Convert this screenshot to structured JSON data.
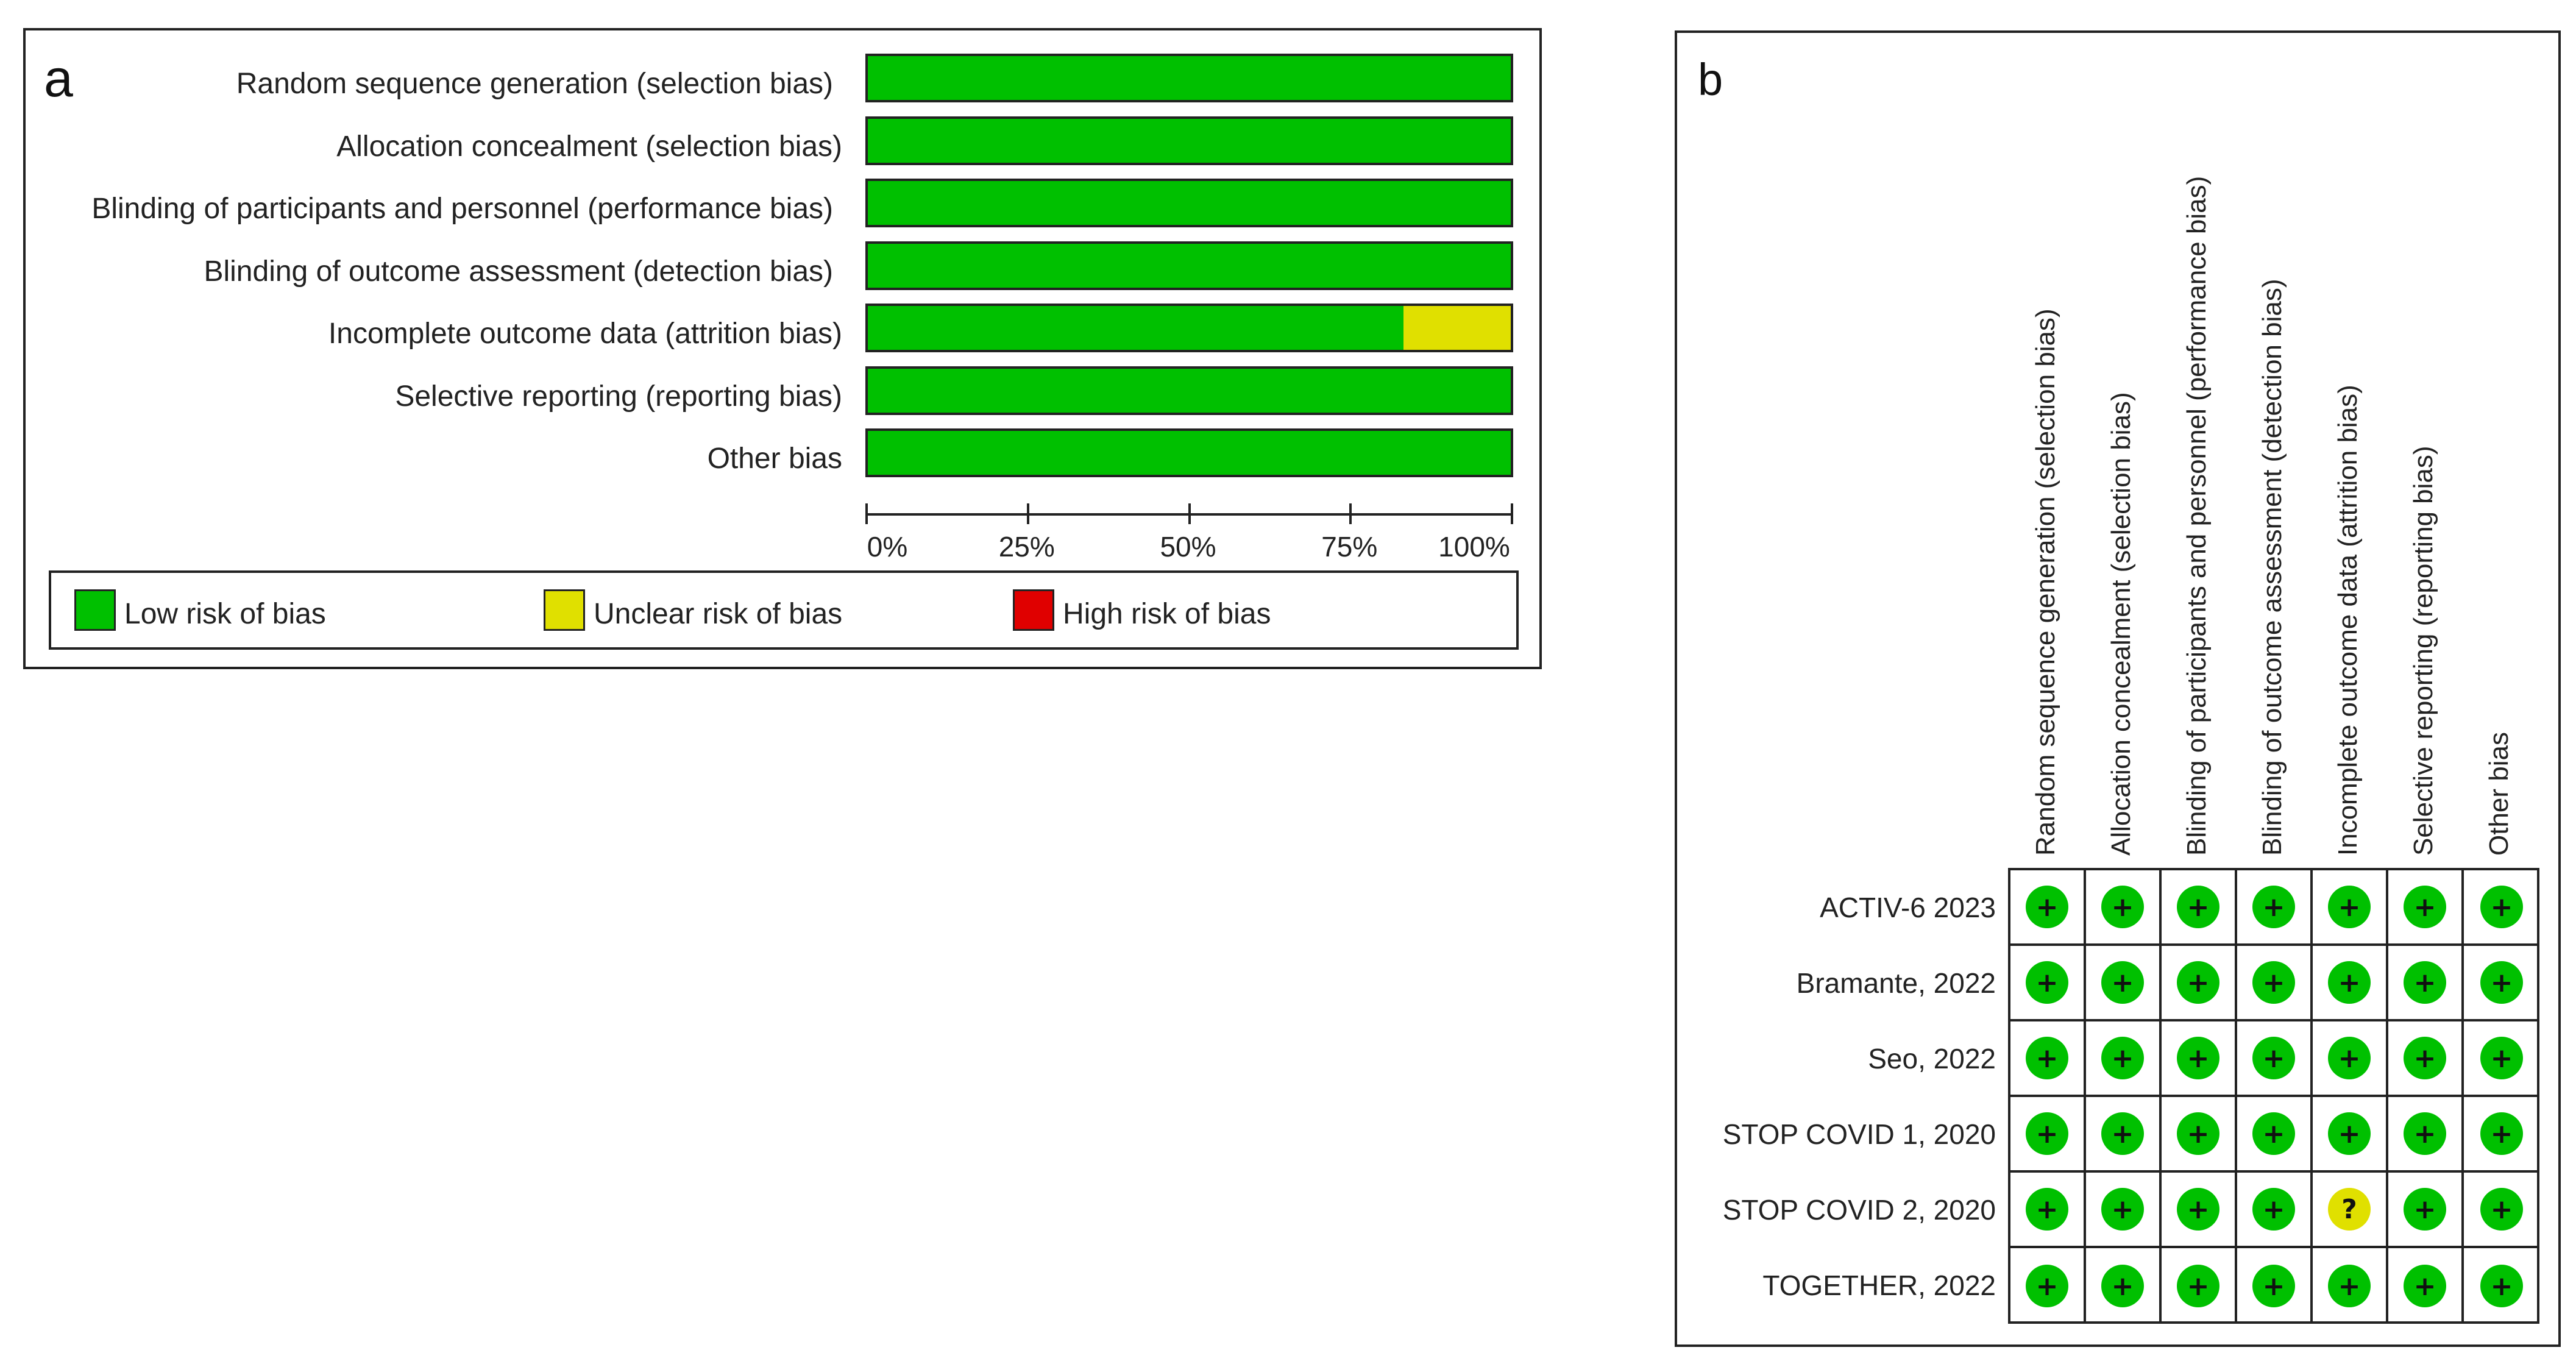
{
  "chart_data": [
    {
      "panel": "a",
      "type": "bar",
      "stacked": true,
      "orientation": "horizontal",
      "categories": [
        "Random sequence generation (selection bias)",
        "Allocation concealment (selection bias)",
        "Blinding of participants and personnel (performance bias)",
        "Blinding of outcome assessment (detection bias)",
        "Incomplete outcome data (attrition bias)",
        "Selective reporting (reporting bias)",
        "Other bias"
      ],
      "series": [
        {
          "name": "Low risk of bias",
          "color": "#00c000",
          "values": [
            100,
            100,
            100,
            100,
            83.3,
            100,
            100
          ]
        },
        {
          "name": "Unclear risk of bias",
          "color": "#e0e000",
          "values": [
            0,
            0,
            0,
            0,
            16.7,
            0,
            0
          ]
        },
        {
          "name": "High risk of bias",
          "color": "#e00000",
          "values": [
            0,
            0,
            0,
            0,
            0,
            0,
            0
          ]
        }
      ],
      "xlim": [
        0,
        100
      ],
      "xticks": [
        "0%",
        "25%",
        "50%",
        "75%",
        "100%"
      ],
      "legend_position": "bottom"
    },
    {
      "panel": "b",
      "type": "table",
      "columns": [
        "Random sequence generation (selection bias)",
        "Allocation concealment (selection bias)",
        "Blinding of participants and personnel (performance bias)",
        "Blinding of outcome assessment (detection bias)",
        "Incomplete outcome data (attrition bias)",
        "Selective reporting (reporting bias)",
        "Other bias"
      ],
      "rows": [
        {
          "study": "ACTIV-6 2023",
          "judgements": [
            "+",
            "+",
            "+",
            "+",
            "+",
            "+",
            "+"
          ]
        },
        {
          "study": "Bramante, 2022",
          "judgements": [
            "+",
            "+",
            "+",
            "+",
            "+",
            "+",
            "+"
          ]
        },
        {
          "study": "Seo, 2022",
          "judgements": [
            "+",
            "+",
            "+",
            "+",
            "+",
            "+",
            "+"
          ]
        },
        {
          "study": "STOP COVID 1, 2020",
          "judgements": [
            "+",
            "+",
            "+",
            "+",
            "+",
            "+",
            "+"
          ]
        },
        {
          "study": "STOP COVID 2, 2020",
          "judgements": [
            "+",
            "+",
            "+",
            "+",
            "?",
            "+",
            "+"
          ]
        },
        {
          "study": "TOGETHER, 2022",
          "judgements": [
            "+",
            "+",
            "+",
            "+",
            "+",
            "+",
            "+"
          ]
        }
      ],
      "symbol_colors": {
        "+": "#00c000",
        "?": "#e0e000",
        "-": "#e00000"
      }
    }
  ],
  "panel_a": {
    "letter": "a"
  },
  "panel_b": {
    "letter": "b"
  }
}
